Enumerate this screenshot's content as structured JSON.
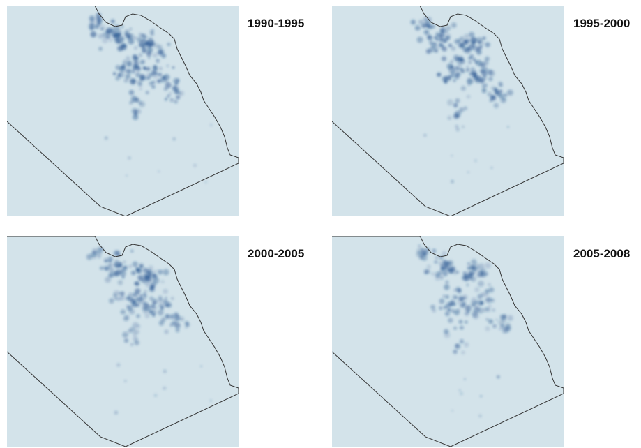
{
  "colors": {
    "background": "#d3e3ea",
    "boundary": "#333333",
    "density": "#1f4e8c"
  },
  "panels": [
    {
      "label": "1990-1995",
      "density_intensity": 0.85
    },
    {
      "label": "1995-2000",
      "density_intensity": 0.75
    },
    {
      "label": "2000-2005",
      "density_intensity": 0.65
    },
    {
      "label": "2005-2008",
      "density_intensity": 0.55
    }
  ]
}
